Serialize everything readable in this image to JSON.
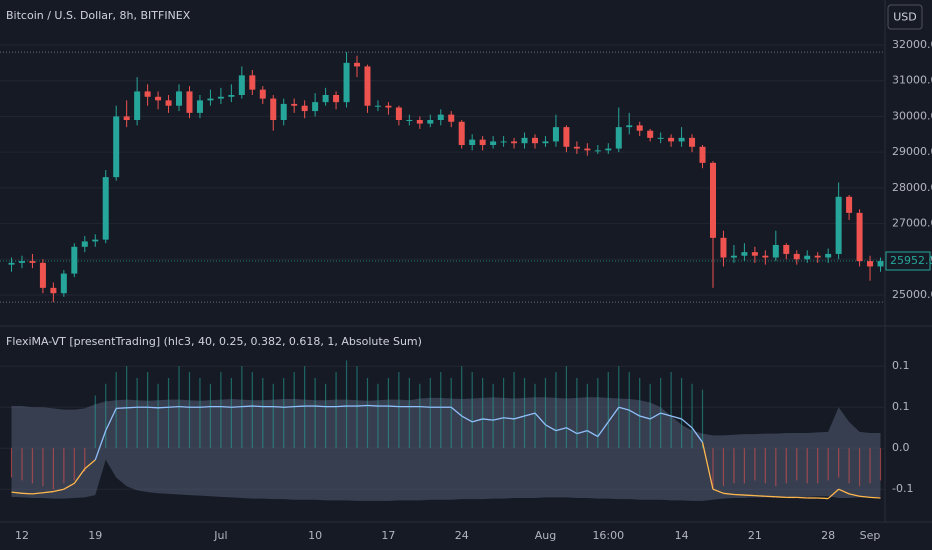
{
  "chart_data": [
    {
      "type": "candlestick",
      "title": "Bitcoin / U.S. Dollar, 8h, BITFINEX",
      "currency_button": "USD",
      "up_color": "#26a69a",
      "down_color": "#ef5350",
      "open": [
        25850,
        25900,
        25950,
        25900,
        25200,
        25050,
        25600,
        26350,
        26500,
        26550,
        28300,
        30000,
        29900,
        30700,
        30550,
        30450,
        30300,
        30700,
        30100,
        30450,
        30500,
        30550,
        30600,
        31150,
        30750,
        30500,
        29900,
        30350,
        30300,
        30150,
        30400,
        30600,
        30400,
        31500,
        31400,
        30300,
        30300,
        30250,
        29900,
        29900,
        29800,
        29900,
        30050,
        29850,
        29200,
        29350,
        29200,
        29300,
        29300,
        29250,
        29400,
        29250,
        29300,
        29700,
        29150,
        29100,
        29050,
        29050,
        29100,
        29700,
        29750,
        29600,
        29400,
        29400,
        29300,
        29400,
        29150,
        28700,
        26600,
        26050,
        26100,
        26200,
        26100,
        26050,
        26400,
        26150,
        26000,
        26100,
        26050,
        26150,
        27750,
        27300,
        25950,
        25800
      ],
      "high": [
        26050,
        26100,
        26150,
        26000,
        25350,
        25700,
        26450,
        26650,
        26700,
        28500,
        30300,
        30450,
        31100,
        30900,
        30700,
        30600,
        30900,
        30850,
        30600,
        30750,
        30800,
        30900,
        31400,
        31300,
        30850,
        30600,
        30500,
        30500,
        30450,
        30650,
        30800,
        30700,
        31800,
        31700,
        31450,
        30450,
        30400,
        30300,
        30050,
        30000,
        30050,
        30200,
        30150,
        29900,
        29500,
        29450,
        29450,
        29450,
        29400,
        29550,
        29500,
        29450,
        30050,
        29750,
        29300,
        29250,
        29200,
        29250,
        30250,
        30100,
        29850,
        29650,
        29550,
        29500,
        29700,
        29500,
        29200,
        28750,
        26800,
        26400,
        26450,
        26350,
        26250,
        26800,
        26450,
        26250,
        26250,
        26200,
        26300,
        28150,
        27800,
        27400,
        26100,
        26050
      ],
      "low": [
        25650,
        25750,
        25750,
        25050,
        24800,
        24950,
        25500,
        26200,
        26350,
        26450,
        28200,
        29700,
        29750,
        30300,
        30200,
        30100,
        30150,
        29950,
        29950,
        30300,
        30350,
        30400,
        30500,
        30600,
        30350,
        29600,
        29750,
        30100,
        29950,
        30000,
        30300,
        30200,
        30250,
        31100,
        30100,
        30150,
        30050,
        29750,
        29750,
        29650,
        29700,
        29750,
        29700,
        29100,
        29050,
        29050,
        29100,
        29150,
        29100,
        29100,
        29100,
        29150,
        29150,
        29000,
        28950,
        28900,
        28950,
        28950,
        29000,
        29500,
        29450,
        29300,
        29250,
        29150,
        29150,
        29000,
        28550,
        25200,
        25800,
        25900,
        25950,
        25900,
        25850,
        25950,
        26000,
        25850,
        25900,
        25900,
        25900,
        26000,
        27100,
        25800,
        25400,
        25650
      ],
      "close": [
        25900,
        25950,
        25900,
        25200,
        25050,
        25600,
        26350,
        26500,
        26550,
        28300,
        30000,
        29900,
        30700,
        30550,
        30450,
        30300,
        30700,
        30100,
        30450,
        30500,
        30550,
        30600,
        31150,
        30750,
        30500,
        29900,
        30350,
        30300,
        30150,
        30400,
        30600,
        30400,
        31500,
        31400,
        30300,
        30300,
        30250,
        29900,
        29900,
        29800,
        29900,
        30050,
        29850,
        29200,
        29350,
        29200,
        29300,
        29300,
        29250,
        29400,
        29250,
        29300,
        29700,
        29150,
        29100,
        29050,
        29050,
        29100,
        29700,
        29750,
        29600,
        29400,
        29400,
        29300,
        29400,
        29150,
        28700,
        26600,
        26050,
        26100,
        26200,
        26100,
        26050,
        26400,
        26150,
        26000,
        26100,
        26050,
        26150,
        27750,
        27300,
        25950,
        25800,
        25950
      ],
      "ylim": [
        24160,
        33260
      ],
      "yticks": [
        {
          "value": 25000,
          "label": "25000.0"
        },
        {
          "value": 26000,
          "label": "26000.0"
        },
        {
          "value": 27000,
          "label": "27000.0"
        },
        {
          "value": 28000,
          "label": "28000.0"
        },
        {
          "value": 29000,
          "label": "29000.0"
        },
        {
          "value": 30000,
          "label": "30000.0"
        },
        {
          "value": 31000,
          "label": "31000.0"
        },
        {
          "value": 32000,
          "label": "32000.0"
        }
      ],
      "last_price": 25952,
      "last_price_label": "25952.0",
      "grid": true
    },
    {
      "type": "line",
      "title": "FlexiMA-VT [presentTrading] (hlc3, 40, 0.25, 0.382, 0.618, 1, Absolute Sum)",
      "categories": [
        null,
        "12",
        null,
        null,
        null,
        null,
        null,
        null,
        "19",
        null,
        null,
        null,
        null,
        null,
        null,
        null,
        null,
        null,
        null,
        null,
        "Jul",
        null,
        null,
        null,
        null,
        null,
        null,
        null,
        null,
        "10",
        null,
        null,
        null,
        null,
        null,
        null,
        "17",
        null,
        null,
        null,
        null,
        null,
        null,
        "24",
        null,
        null,
        null,
        null,
        null,
        null,
        null,
        "Aug",
        null,
        null,
        null,
        null,
        null,
        "16:00",
        null,
        null,
        null,
        null,
        null,
        null,
        "14",
        null,
        null,
        null,
        null,
        null,
        null,
        "21",
        null,
        null,
        null,
        null,
        null,
        null,
        "28",
        null,
        null,
        null,
        "Sep",
        null
      ],
      "line": {
        "color": "#90bff9",
        "negative_color": "#ffb74d",
        "values": [
          -0.075,
          -0.077,
          -0.078,
          -0.076,
          -0.074,
          -0.07,
          -0.06,
          -0.035,
          -0.02,
          0.03,
          0.068,
          0.069,
          0.07,
          0.07,
          0.069,
          0.07,
          0.071,
          0.07,
          0.07,
          0.071,
          0.071,
          0.07,
          0.071,
          0.072,
          0.071,
          0.071,
          0.07,
          0.071,
          0.072,
          0.072,
          0.071,
          0.071,
          0.072,
          0.072,
          0.073,
          0.072,
          0.072,
          0.071,
          0.071,
          0.071,
          0.07,
          0.07,
          0.07,
          0.055,
          0.045,
          0.05,
          0.048,
          0.052,
          0.05,
          0.055,
          0.06,
          0.04,
          0.03,
          0.035,
          0.025,
          0.03,
          0.02,
          0.045,
          0.07,
          0.065,
          0.055,
          0.05,
          0.06,
          0.055,
          0.05,
          0.035,
          0.01,
          -0.07,
          -0.077,
          -0.079,
          -0.08,
          -0.081,
          -0.082,
          -0.083,
          -0.084,
          -0.084,
          -0.085,
          -0.085,
          -0.086,
          -0.07,
          -0.078,
          -0.082,
          -0.084,
          -0.085
        ]
      },
      "band": {
        "color": "#5d6b85",
        "upper": [
          0.072,
          0.072,
          0.07,
          0.07,
          0.068,
          0.066,
          0.066,
          0.068,
          0.075,
          0.08,
          0.082,
          0.083,
          0.082,
          0.081,
          0.082,
          0.083,
          0.083,
          0.082,
          0.081,
          0.082,
          0.083,
          0.084,
          0.083,
          0.082,
          0.082,
          0.083,
          0.084,
          0.084,
          0.083,
          0.082,
          0.082,
          0.083,
          0.083,
          0.082,
          0.081,
          0.082,
          0.083,
          0.083,
          0.082,
          0.085,
          0.086,
          0.086,
          0.085,
          0.084,
          0.085,
          0.086,
          0.087,
          0.086,
          0.085,
          0.086,
          0.087,
          0.087,
          0.086,
          0.085,
          0.086,
          0.087,
          0.087,
          0.086,
          0.085,
          0.084,
          0.082,
          0.078,
          0.07,
          0.055,
          0.04,
          0.03,
          0.025,
          0.022,
          0.022,
          0.023,
          0.024,
          0.024,
          0.025,
          0.025,
          0.026,
          0.026,
          0.026,
          0.027,
          0.028,
          0.07,
          0.045,
          0.028,
          0.026,
          0.026
        ],
        "lower": [
          -0.083,
          -0.084,
          -0.085,
          -0.085,
          -0.086,
          -0.086,
          -0.085,
          -0.084,
          -0.08,
          -0.02,
          -0.05,
          -0.065,
          -0.072,
          -0.075,
          -0.077,
          -0.078,
          -0.079,
          -0.08,
          -0.081,
          -0.082,
          -0.083,
          -0.084,
          -0.085,
          -0.086,
          -0.086,
          -0.087,
          -0.087,
          -0.088,
          -0.088,
          -0.088,
          -0.089,
          -0.089,
          -0.089,
          -0.09,
          -0.09,
          -0.09,
          -0.09,
          -0.089,
          -0.089,
          -0.089,
          -0.088,
          -0.088,
          -0.088,
          -0.087,
          -0.087,
          -0.087,
          -0.086,
          -0.086,
          -0.085,
          -0.085,
          -0.085,
          -0.084,
          -0.084,
          -0.084,
          -0.085,
          -0.085,
          -0.086,
          -0.086,
          -0.087,
          -0.087,
          -0.088,
          -0.088,
          -0.088,
          -0.089,
          -0.089,
          -0.09,
          -0.09,
          -0.088,
          -0.086,
          -0.085,
          -0.085,
          -0.084,
          -0.084,
          -0.084,
          -0.083,
          -0.083,
          -0.083,
          -0.082,
          -0.082,
          -0.085,
          -0.085,
          -0.084,
          -0.084,
          -0.083
        ]
      },
      "histogram": {
        "color": "#26a69a",
        "negative_color": "#ef5350",
        "values": [
          -0.05,
          -0.055,
          -0.06,
          -0.065,
          -0.07,
          -0.06,
          -0.055,
          -0.04,
          0.09,
          0.11,
          0.13,
          0.14,
          0.12,
          0.13,
          0.11,
          0.12,
          0.14,
          0.13,
          0.12,
          0.11,
          0.13,
          0.12,
          0.14,
          0.13,
          0.12,
          0.11,
          0.12,
          0.13,
          0.14,
          0.12,
          0.11,
          0.13,
          0.15,
          0.14,
          0.12,
          0.11,
          0.12,
          0.13,
          0.12,
          0.11,
          0.12,
          0.13,
          0.12,
          0.14,
          0.13,
          0.12,
          0.11,
          0.12,
          0.13,
          0.12,
          0.11,
          0.12,
          0.13,
          0.14,
          0.12,
          0.11,
          0.12,
          0.13,
          0.14,
          0.13,
          0.12,
          0.11,
          0.12,
          0.13,
          0.12,
          0.11,
          0.1,
          -0.07,
          -0.065,
          -0.06,
          -0.06,
          -0.055,
          -0.06,
          -0.065,
          -0.06,
          -0.055,
          -0.06,
          -0.06,
          -0.055,
          -0.05,
          -0.06,
          -0.065,
          -0.06,
          -0.055
        ]
      },
      "ylim": [
        -0.126,
        0.207
      ],
      "yticks": [
        {
          "value": 0.14,
          "label": "0.1"
        },
        {
          "value": 0.07,
          "label": "0.1"
        },
        {
          "value": 0,
          "label": "0.0"
        },
        {
          "value": -0.07,
          "label": "-0.1"
        }
      ],
      "grid": true
    }
  ]
}
